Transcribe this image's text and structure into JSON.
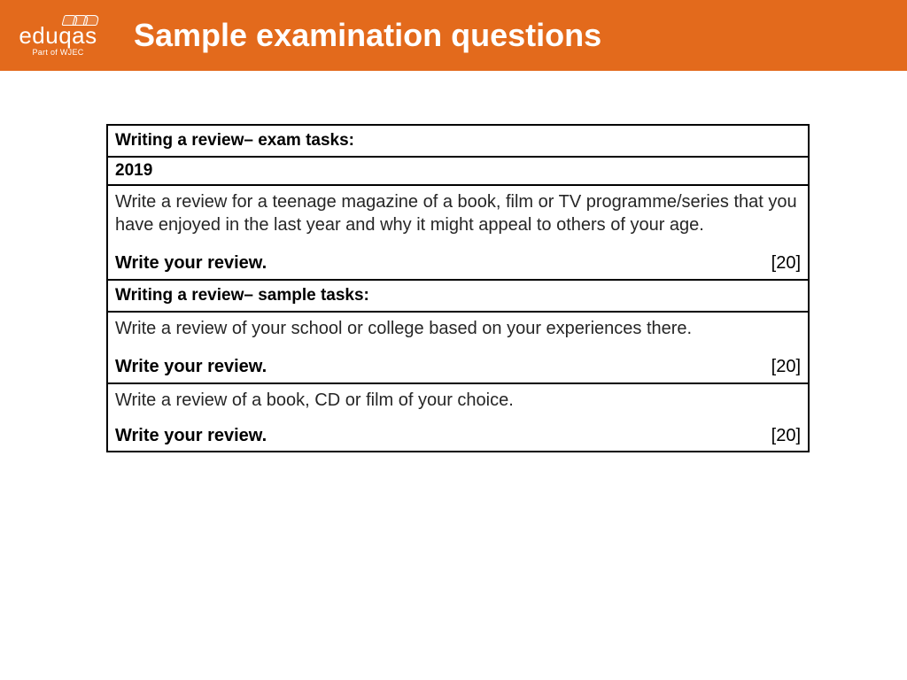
{
  "header": {
    "logo_text": "eduqas",
    "logo_sub": "Part of WJEC",
    "title": "Sample examination questions",
    "bg_color": "#e36a1c",
    "text_color": "#ffffff"
  },
  "table": {
    "border_color": "#000000",
    "rows": [
      {
        "type": "header",
        "text": "Writing a review– exam tasks:"
      },
      {
        "type": "year",
        "text": "2019"
      },
      {
        "type": "task",
        "prompt": " Write a review for a teenage magazine of a book, film or TV programme/series that you have enjoyed in the last year and why it might appeal to others of your age.",
        "instruction": "Write your review.",
        "marks": "[20]"
      },
      {
        "type": "header",
        "text": "Writing a review– sample tasks:"
      },
      {
        "type": "task",
        "prompt": "Write a review of your school or college based on your experiences there.",
        "instruction": "Write your review.",
        "marks": "[20]"
      },
      {
        "type": "task",
        "prompt": "Write a review of a book, CD or film of your choice.",
        "instruction": "Write your review.",
        "marks": "[20]"
      }
    ]
  }
}
